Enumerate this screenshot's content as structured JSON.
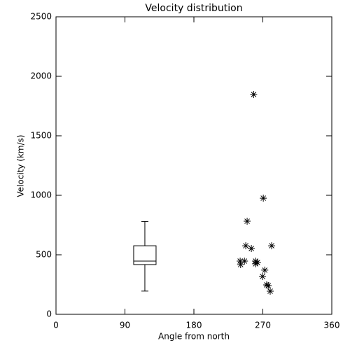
{
  "chart_data": {
    "type": "scatter",
    "title": "Velocity distribution",
    "x_label": "Angle from north",
    "y_label": "Velocity (km/s)",
    "xlim": [
      0,
      360
    ],
    "ylim": [
      0,
      2500
    ],
    "xticks": [
      0,
      90,
      180,
      270,
      360
    ],
    "yticks": [
      0,
      500,
      1000,
      1500,
      2000,
      2500
    ],
    "color": "#000000",
    "x": [
      258,
      270.6,
      249.5,
      247.7,
      255,
      281.5,
      240.4,
      246,
      241,
      260.5,
      263,
      260.5,
      272.5,
      269.6,
      277,
      275,
      279.6
    ],
    "values": [
      1847,
      976,
      782,
      576,
      553,
      576,
      447,
      447,
      418,
      447,
      435,
      424,
      371,
      318,
      241,
      247,
      194
    ],
    "box": {
      "x": 116,
      "whisker_low": 195,
      "q1": 418,
      "median": 447,
      "q3": 576,
      "whisker_high": 780
    }
  }
}
